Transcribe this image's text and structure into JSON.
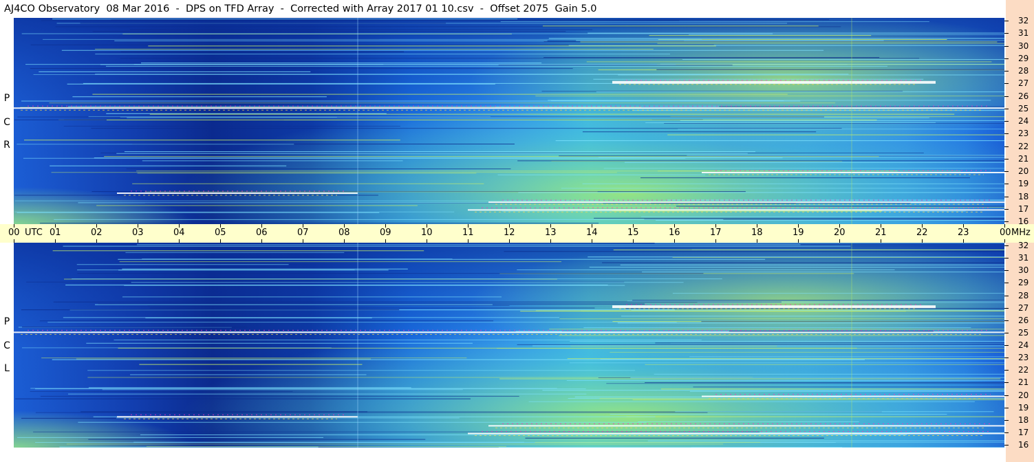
{
  "title": "AJ4CO Observatory  08 Mar 2016  -  DPS on TFD Array  -  Corrected with Array 2017 01 10.csv  -  Offset 2075  Gain 5.0",
  "colors": {
    "background_low": "#0a2f9a",
    "background_mid": "#2f8df0",
    "high": "#bff05a",
    "saturated": "#ff2ec0",
    "timebar": "#ffffcc",
    "axis_strip": "#fcdcc4"
  },
  "chart_data": [
    {
      "type": "heatmap",
      "name": "RCP",
      "polarization_label": [
        "R",
        "C",
        "P"
      ],
      "x_label": "UTC",
      "x_ticks": [
        "00",
        "01",
        "02",
        "03",
        "04",
        "05",
        "06",
        "07",
        "08",
        "09",
        "10",
        "11",
        "12",
        "13",
        "14",
        "15",
        "16",
        "17",
        "18",
        "19",
        "20",
        "21",
        "22",
        "23",
        "00"
      ],
      "x_range_hours": [
        0,
        24
      ],
      "y_unit": "MHz",
      "y_range_mhz": [
        16,
        32
      ],
      "y_ticks": [
        "16",
        "17",
        "18",
        "19",
        "20",
        "21",
        "22",
        "23",
        "24",
        "25",
        "26",
        "27",
        "28",
        "29",
        "30",
        "31",
        "32"
      ]
    },
    {
      "type": "heatmap",
      "name": "LCP",
      "polarization_label": [
        "L",
        "C",
        "P"
      ],
      "x_label": "UTC",
      "x_ticks": [
        "00",
        "01",
        "02",
        "03",
        "04",
        "05",
        "06",
        "07",
        "08",
        "09",
        "10",
        "11",
        "12",
        "13",
        "14",
        "15",
        "16",
        "17",
        "18",
        "19",
        "20",
        "21",
        "22",
        "23",
        "00"
      ],
      "x_range_hours": [
        0,
        24
      ],
      "y_unit": "MHz",
      "y_range_mhz": [
        16,
        32
      ],
      "y_ticks": [
        "16",
        "17",
        "18",
        "19",
        "20",
        "21",
        "22",
        "23",
        "24",
        "25",
        "26",
        "27",
        "28",
        "29",
        "30",
        "31",
        "32"
      ]
    }
  ],
  "timebar": {
    "utc_label": "UTC",
    "mhz_label": "MHz"
  }
}
